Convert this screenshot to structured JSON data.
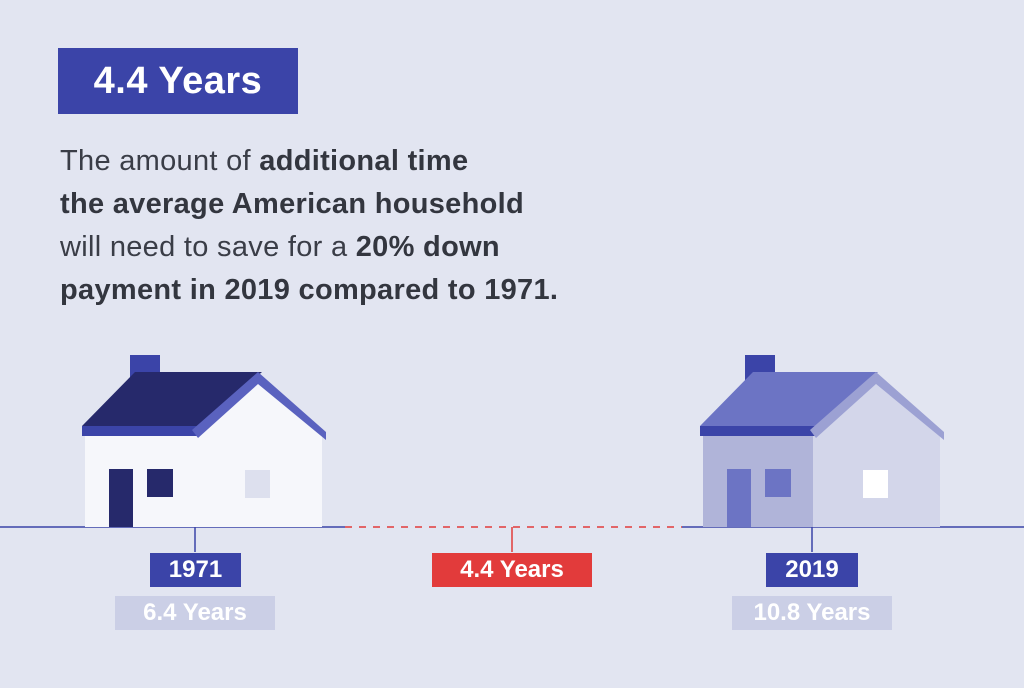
{
  "headline": "4.4 Years",
  "description": {
    "lines": [
      [
        {
          "text": "The amount of ",
          "bold": false
        },
        {
          "text": "additional time",
          "bold": true
        }
      ],
      [
        {
          "text": "the average American household",
          "bold": true
        }
      ],
      [
        {
          "text": "will need to save for a ",
          "bold": false
        },
        {
          "text": "20% down",
          "bold": true
        }
      ],
      [
        {
          "text": "payment in 2019 compared to 1971.",
          "bold": true
        }
      ]
    ]
  },
  "comparison": {
    "left": {
      "year": "1971",
      "years": "6.4 Years"
    },
    "middle": {
      "difference": "4.4 Years"
    },
    "right": {
      "year": "2019",
      "years": "10.8 Years"
    }
  },
  "colors": {
    "background": "#e2e5f1",
    "primary_blue": "#3b44a8",
    "accent_red": "#e23b3b",
    "light_label": "#cbcfe6"
  }
}
